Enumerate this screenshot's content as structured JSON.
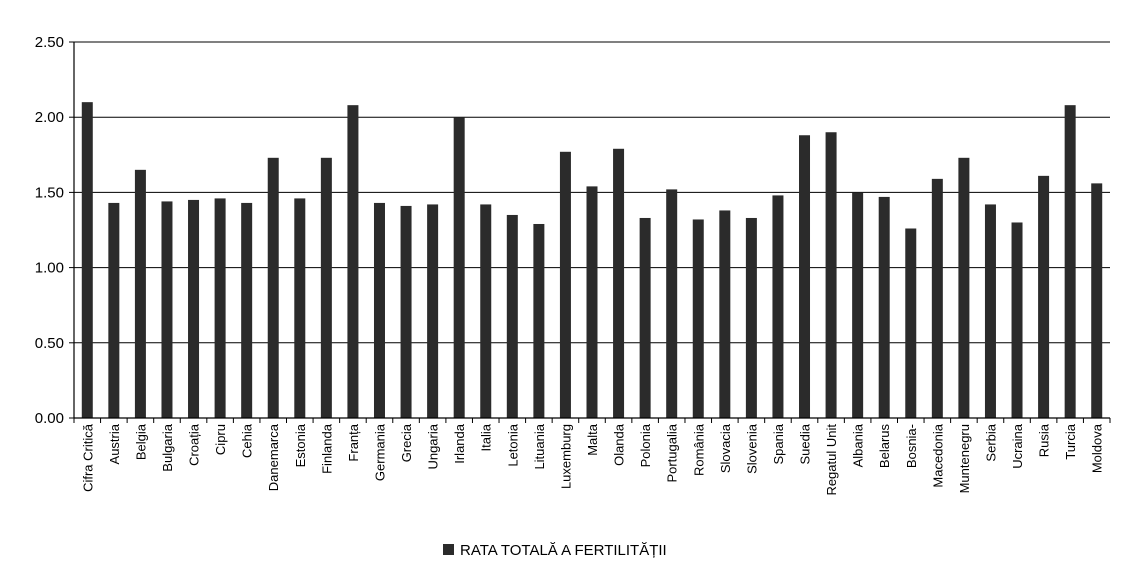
{
  "chart_data": {
    "type": "bar",
    "title": "",
    "xlabel": "",
    "ylabel": "",
    "ylim": [
      0,
      2.5
    ],
    "yticks": [
      "0.00",
      "0.50",
      "1.00",
      "1.50",
      "2.00",
      "2.50"
    ],
    "grid": true,
    "legend_position": "bottom",
    "bar_color": "#2b2b2b",
    "categories": [
      "Cifra Critică",
      "Austria",
      "Belgia",
      "Bulgaria",
      "Croația",
      "Cipru",
      "Cehia",
      "Danemarca",
      "Estonia",
      "Finlanda",
      "Franța",
      "Germania",
      "Grecia",
      "Ungaria",
      "Irlanda",
      "Italia",
      "Letonia",
      "Lituania",
      "Luxemburg",
      "Malta",
      "Olanda",
      "Polonia",
      "Portugalia",
      "România",
      "Slovacia",
      "Slovenia",
      "Spania",
      "Suedia",
      "Regatul Unit",
      "Albania",
      "Belarus",
      "Bosnia-",
      "Macedonia",
      "Muntenegru",
      "Serbia",
      "Ucraina",
      "Rusia",
      "Turcia",
      "Moldova"
    ],
    "series": [
      {
        "name": "RATA TOTALĂ A FERTILITĂȚII",
        "values": [
          2.1,
          1.43,
          1.65,
          1.44,
          1.45,
          1.46,
          1.43,
          1.73,
          1.46,
          1.73,
          2.08,
          1.43,
          1.41,
          1.42,
          2.0,
          1.42,
          1.35,
          1.29,
          1.77,
          1.54,
          1.79,
          1.33,
          1.52,
          1.32,
          1.38,
          1.33,
          1.48,
          1.88,
          1.9,
          1.5,
          1.47,
          1.26,
          1.59,
          1.73,
          1.42,
          1.3,
          1.61,
          2.08,
          1.56
        ]
      }
    ]
  }
}
